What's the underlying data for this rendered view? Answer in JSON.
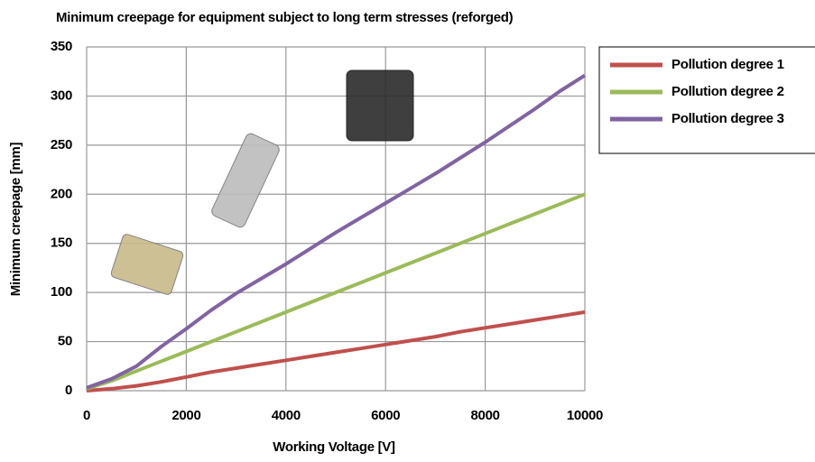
{
  "chart_data": {
    "type": "line",
    "title": "Minimum creepage for equipment subject to long term stresses (reforged)",
    "x_label": "Working Voltage [V]",
    "y_label": "Minimum creepage [mm]",
    "x": [
      0,
      500,
      1000,
      1500,
      2000,
      2500,
      3000,
      3500,
      4000,
      4500,
      5000,
      5500,
      6000,
      6500,
      7000,
      7500,
      8000,
      8500,
      9000,
      9500,
      10000
    ],
    "series": [
      {
        "name": "Pollution degree 1",
        "color": "#c0504d",
        "values": [
          0,
          2,
          5,
          9,
          14,
          19,
          23,
          27,
          31,
          35,
          39,
          43,
          47,
          51,
          55,
          60,
          64,
          68,
          72,
          76,
          80
        ]
      },
      {
        "name": "Pollution degree 2",
        "color": "#9bbb59",
        "values": [
          2,
          10,
          20,
          30,
          40,
          50,
          60,
          70,
          80,
          90,
          100,
          110,
          120,
          130,
          140,
          150,
          160,
          170,
          180,
          190,
          200
        ]
      },
      {
        "name": "Pollution degree 3",
        "color": "#8064a2",
        "values": [
          3,
          12,
          25,
          45,
          63,
          82,
          99,
          114,
          129,
          145,
          161,
          176,
          191,
          206,
          221,
          237,
          253,
          270,
          287,
          305,
          321
        ]
      }
    ],
    "xlim": [
      0,
      10000
    ],
    "xticks": [
      0,
      2000,
      4000,
      6000,
      8000,
      10000
    ],
    "ylim": [
      0,
      350
    ],
    "yticks": [
      0,
      50,
      100,
      150,
      200,
      250,
      300,
      350
    ],
    "grid": true,
    "legend": "right"
  }
}
